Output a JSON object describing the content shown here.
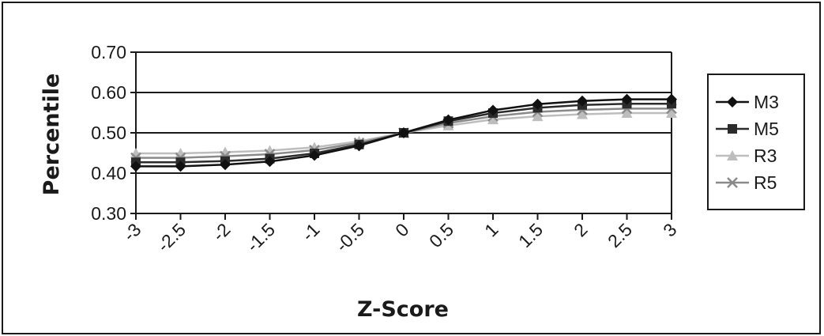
{
  "chart_data": {
    "type": "line",
    "title": "",
    "xlabel": "Z-Score",
    "ylabel": "Percentile",
    "x": [
      -3,
      -2.5,
      -2,
      -1.5,
      -1,
      -0.5,
      0,
      0.5,
      1,
      1.5,
      2,
      2.5,
      3
    ],
    "x_tick_labels": [
      "-3",
      "-2.5",
      "-2",
      "-1.5",
      "-1",
      "-0.5",
      "0",
      "0.5",
      "1",
      "1.5",
      "2",
      "2.5",
      "3"
    ],
    "y_tick_labels": [
      "0.70",
      "0.60",
      "0.50",
      "0.40",
      "0.30"
    ],
    "ylim": [
      0.3,
      0.7
    ],
    "y_ticks": [
      0.3,
      0.4,
      0.5,
      0.6,
      0.7
    ],
    "grid": "horizontal",
    "legend_position": "right",
    "series": [
      {
        "name": "M3",
        "marker": "diamond",
        "color": "#111111",
        "values": [
          0.417,
          0.417,
          0.421,
          0.429,
          0.444,
          0.468,
          0.5,
          0.532,
          0.556,
          0.571,
          0.579,
          0.583,
          0.583
        ]
      },
      {
        "name": "M5",
        "marker": "square",
        "color": "#2b2b2b",
        "values": [
          0.427,
          0.427,
          0.43,
          0.436,
          0.449,
          0.471,
          0.5,
          0.529,
          0.549,
          0.562,
          0.569,
          0.572,
          0.572
        ]
      },
      {
        "name": "R3",
        "marker": "triangle",
        "color": "#bdbdbd",
        "values": [
          0.449,
          0.449,
          0.452,
          0.456,
          0.464,
          0.479,
          0.5,
          0.518,
          0.533,
          0.541,
          0.546,
          0.549,
          0.549
        ]
      },
      {
        "name": "R5",
        "marker": "x",
        "color": "#8a8a8a",
        "values": [
          0.438,
          0.438,
          0.442,
          0.447,
          0.457,
          0.475,
          0.5,
          0.524,
          0.541,
          0.552,
          0.557,
          0.56,
          0.56
        ]
      }
    ]
  }
}
